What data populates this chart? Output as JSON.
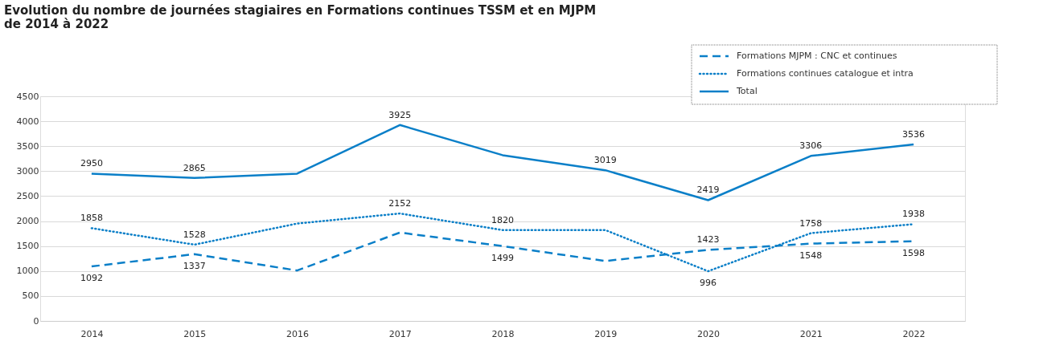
{
  "chart_data": {
    "type": "line",
    "title": [
      "Evolution du nombre de journées stagiaires en Formations continues TSSM et en MJPM",
      "de 2014 à 2022"
    ],
    "categories": [
      "2014",
      "2015",
      "2016",
      "2017",
      "2018",
      "2019",
      "2020",
      "2021",
      "2022"
    ],
    "series": [
      {
        "name": "Formations MJPM : CNC et continues",
        "color": "#0a7fc8",
        "line_style": "dashed",
        "values": [
          1092,
          1337,
          1010,
          1770,
          1499,
          1200,
          1423,
          1548,
          1598
        ],
        "value_labels": [
          "1092",
          "1337",
          null,
          null,
          "1499",
          null,
          "1423",
          "1548",
          "1598"
        ]
      },
      {
        "name": "Formations continues catalogue et intra",
        "color": "#0a7fc8",
        "line_style": "dotted",
        "values": [
          1858,
          1528,
          1950,
          2152,
          1820,
          1820,
          996,
          1758,
          1938
        ],
        "value_labels": [
          "1858",
          "1528",
          null,
          "2152",
          "1820",
          null,
          "996",
          "1758",
          "1938"
        ]
      },
      {
        "name": "Total",
        "color": "#0a7fc8",
        "line_style": "solid",
        "values": [
          2950,
          2865,
          2950,
          3925,
          3320,
          3019,
          2419,
          3306,
          3536
        ],
        "value_labels": [
          "2950",
          "2865",
          null,
          "3925",
          null,
          "3019",
          "2419",
          "3306",
          "3536"
        ]
      }
    ],
    "ylim": [
      0,
      4500
    ],
    "yticks": [
      0,
      500,
      1000,
      1500,
      2000,
      2500,
      3000,
      3500,
      4000,
      4500
    ],
    "grid": "y",
    "legend": "top right",
    "marker": "none"
  }
}
